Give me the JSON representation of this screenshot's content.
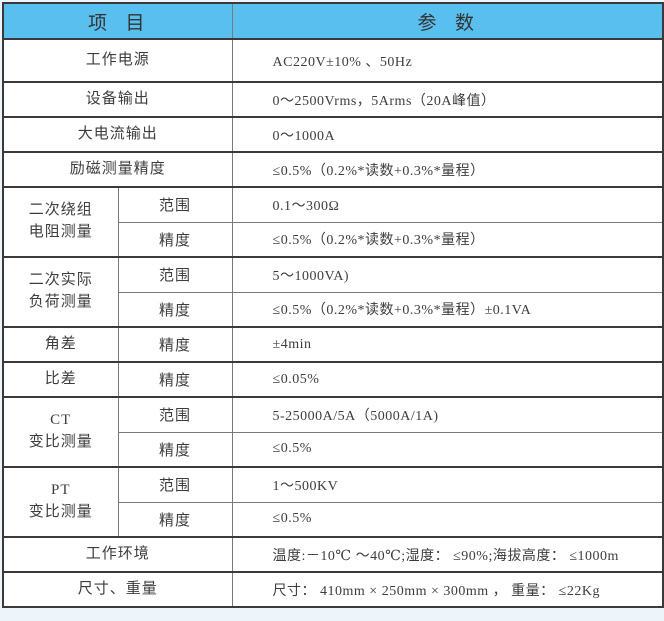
{
  "colors": {
    "header_bg": "#58BFEE",
    "border_dark": "#3A3A3A",
    "border_light": "#7A7A7A",
    "page_bg": "#EDF4FA",
    "text": "#3D3D3D"
  },
  "table": {
    "header": {
      "item_col": "项  目",
      "param_col": "参  数"
    },
    "rows": [
      {
        "label": "工作电源",
        "value": "AC220V±10% 、50Hz"
      },
      {
        "label": "设备输出",
        "value": "0～2500Vrms，5Arms（20A峰值）"
      },
      {
        "label": "大电流输出",
        "value": "0～1000A"
      },
      {
        "label": "励磁测量精度",
        "value": "≤0.5%（0.2%*读数+0.3%*量程）"
      },
      {
        "label_lines": [
          "二次绕组",
          "电阻测量"
        ],
        "subrows": [
          {
            "label": "范围",
            "value": "0.1～300Ω"
          },
          {
            "label": "精度",
            "value": "≤0.5%（0.2%*读数+0.3%*量程）"
          }
        ]
      },
      {
        "label_lines": [
          "二次实际",
          "负荷测量"
        ],
        "subrows": [
          {
            "label": "范围",
            "value": "5～1000VA)"
          },
          {
            "label": "精度",
            "value": "≤0.5%（0.2%*读数+0.3%*量程）±0.1VA"
          }
        ]
      },
      {
        "label": "角差",
        "sublabel": "精度",
        "value": "±4min"
      },
      {
        "label": "比差",
        "sublabel": "精度",
        "value": "≤0.05%"
      },
      {
        "label_lines": [
          "CT",
          "变比测量"
        ],
        "subrows": [
          {
            "label": "范围",
            "value": "5-25000A/5A（5000A/1A)"
          },
          {
            "label": "精度",
            "value": "≤0.5%"
          }
        ]
      },
      {
        "label_lines": [
          "PT",
          "变比测量"
        ],
        "subrows": [
          {
            "label": "范围",
            "value": "1～500KV"
          },
          {
            "label": "精度",
            "value": "≤0.5%"
          }
        ]
      },
      {
        "label": "工作环境",
        "value": "温度:－10℃ ～40℃;湿度： ≤90%;海拔高度： ≤1000m"
      },
      {
        "label": "尺寸、重量",
        "value": "尺寸： 410mm × 250mm × 300mm ， 重量： ≤22Kg"
      }
    ]
  }
}
